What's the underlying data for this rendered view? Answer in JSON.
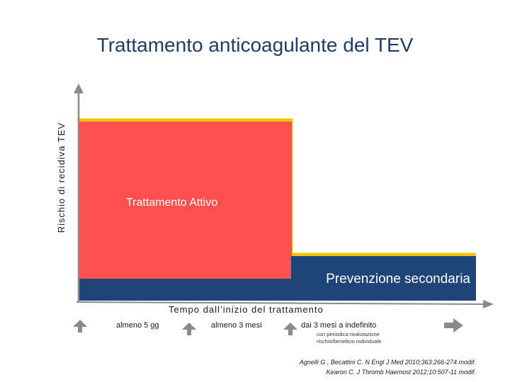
{
  "title": "Trattamento anticoagulante del TEV",
  "y_axis_label": "Rischio di recidiva TEV",
  "x_axis_label": "Tempo dall’inizio del trattamento",
  "phases": {
    "active": "Trattamento  Attivo",
    "secondary": "Prevenzione secondaria"
  },
  "time_markers": [
    {
      "label": "almeno 5 gg"
    },
    {
      "label": "almeno 3 mesi"
    },
    {
      "label": "dai 3 mesi a indefinito",
      "note": "con periodica rivalutazione rischio/beneficio individuale"
    }
  ],
  "references": [
    "Agnelli G , Becattini C. N Engl J Med 2010;363:266-274 modif.",
    "Kearon C. J Thromb Haemost 2012;10:507-11 modif."
  ],
  "colors": {
    "active_fill": "#ff5050",
    "secondary_fill": "#1f4478",
    "risk_line": "#f2c400",
    "axis": "#8a8a8a",
    "marker_arrow": "#8a8a8a"
  }
}
